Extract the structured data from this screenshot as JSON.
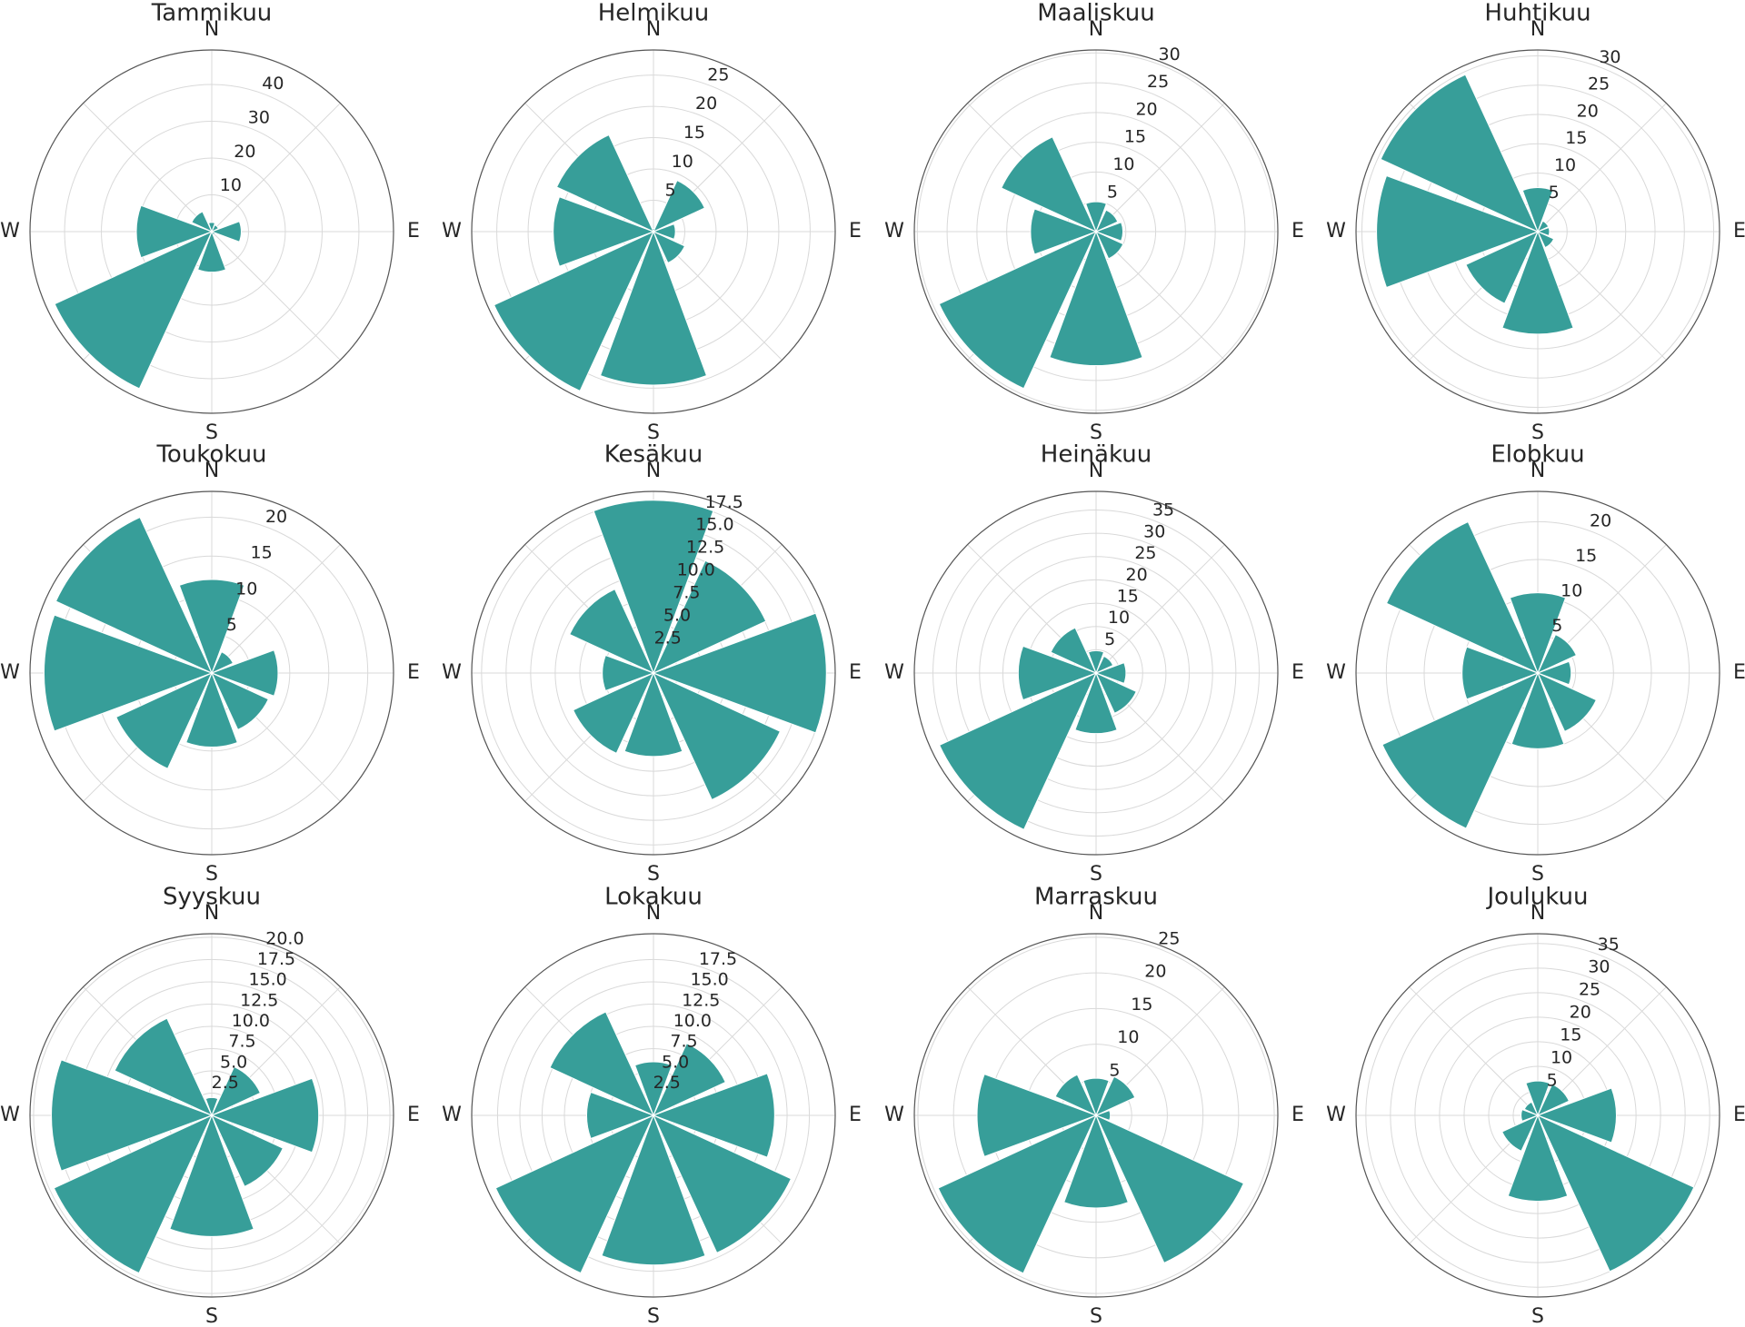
{
  "chart_data": [
    {
      "type": "polar_bar",
      "title": "Tammikuu",
      "categories": [
        "N",
        null,
        "E",
        null,
        "S",
        null,
        "W",
        null
      ],
      "color": "#379e99",
      "values": [
        2.5,
        2,
        8,
        1,
        11,
        47,
        20.5,
        6
      ],
      "ylim": [
        0,
        49.4
      ],
      "yticks": [
        10,
        20,
        30,
        40
      ],
      "grid": true
    },
    {
      "type": "polar_bar",
      "title": "Helmikuu",
      "categories": [
        "N",
        null,
        "E",
        null,
        "S",
        null,
        "W",
        null
      ],
      "color": "#379e99",
      "values": [
        0.5,
        9,
        3.5,
        5.5,
        24.5,
        28,
        16,
        17
      ],
      "ylim": [
        0,
        29
      ],
      "yticks": [
        5,
        10,
        15,
        20,
        25
      ],
      "grid": true
    },
    {
      "type": "polar_bar",
      "title": "Maaliskuu",
      "categories": [
        "N",
        null,
        "E",
        null,
        "S",
        null,
        "W",
        null
      ],
      "color": "#379e99",
      "values": [
        5,
        4,
        4.5,
        5,
        22.5,
        29,
        11,
        17.5
      ],
      "ylim": [
        0,
        30.5
      ],
      "yticks": [
        5,
        10,
        15,
        20,
        25,
        30
      ],
      "grid": true
    },
    {
      "type": "polar_bar",
      "title": "Huhtikuu",
      "categories": [
        "N",
        null,
        "E",
        null,
        "S",
        null,
        "W",
        null
      ],
      "color": "#379e99",
      "values": [
        7.5,
        2,
        2,
        3,
        17.5,
        13.5,
        27.5,
        29.5
      ],
      "ylim": [
        0,
        31
      ],
      "yticks": [
        5,
        10,
        15,
        20,
        25,
        30
      ],
      "grid": true
    },
    {
      "type": "polar_bar",
      "title": "Toukokuu",
      "categories": [
        "N",
        null,
        "E",
        null,
        "S",
        null,
        "W",
        null
      ],
      "color": "#379e99",
      "values": [
        12,
        3,
        8.5,
        8,
        9.5,
        13.5,
        21.5,
        22
      ],
      "ylim": [
        0,
        23.3
      ],
      "yticks": [
        5,
        10,
        15,
        20
      ],
      "grid": true
    },
    {
      "type": "polar_bar",
      "title": "Kesäkuu",
      "categories": [
        "N",
        null,
        "E",
        null,
        "S",
        null,
        "W",
        null
      ],
      "color": "#379e99",
      "values": [
        17.6,
        12.6,
        17.6,
        14.2,
        8.5,
        9,
        5.2,
        9.4
      ],
      "ylim": [
        0,
        18.5
      ],
      "yticks": [
        2.5,
        {
          "value": 5,
          "label": "5.0"
        },
        7.5,
        {
          "value": 10,
          "label": "10.0"
        },
        12.5,
        {
          "value": 15,
          "label": "15.0"
        },
        17.5
      ],
      "grid": true
    },
    {
      "type": "polar_bar",
      "title": "Heinäkuu",
      "categories": [
        "N",
        null,
        "E",
        null,
        "S",
        null,
        "W",
        null
      ],
      "color": "#379e99",
      "values": [
        4.8,
        4,
        6.4,
        9.5,
        13,
        37,
        16.7,
        10.7
      ],
      "ylim": [
        0,
        39
      ],
      "yticks": [
        5,
        10,
        15,
        20,
        25,
        30,
        35
      ],
      "grid": true
    },
    {
      "type": "polar_bar",
      "title": "Elobkuu",
      "categories": [
        "N",
        null,
        "E",
        null,
        "S",
        null,
        "W",
        null
      ],
      "color": "#379e99",
      "values": [
        10.6,
        5.6,
        4.4,
        8.5,
        10,
        22.6,
        10,
        22
      ],
      "ylim": [
        0,
        24
      ],
      "yticks": [
        5,
        10,
        15,
        20
      ],
      "grid": true
    },
    {
      "type": "polar_bar",
      "title": "Syyskuu",
      "categories": [
        "N",
        null,
        "E",
        null,
        "S",
        null,
        "W",
        null
      ],
      "color": "#379e99",
      "values": [
        2,
        6,
        12,
        8.8,
        13.6,
        19.5,
        18,
        12
      ],
      "ylim": [
        0,
        20.4
      ],
      "yticks": [
        2.5,
        {
          "value": 5,
          "label": "5.0"
        },
        7.5,
        {
          "value": 10,
          "label": "10.0"
        },
        12.5,
        {
          "value": 15,
          "label": "15.0"
        },
        17.5,
        {
          "value": 20,
          "label": "20.0"
        }
      ],
      "grid": true
    },
    {
      "type": "polar_bar",
      "title": "Lokakuu",
      "categories": [
        "N",
        null,
        "E",
        null,
        "S",
        null,
        "W",
        null
      ],
      "color": "#379e99",
      "values": [
        6,
        8.9,
        13.6,
        17,
        16.8,
        19.5,
        7.5,
        12.8
      ],
      "ylim": [
        0,
        20.4
      ],
      "yticks": [
        2.5,
        {
          "value": 5,
          "label": "5.0"
        },
        7.5,
        {
          "value": 10,
          "label": "10.0"
        },
        12.5,
        {
          "value": 15,
          "label": "15.0"
        },
        17.5
      ],
      "grid": true
    },
    {
      "type": "polar_bar",
      "title": "Marraskuu",
      "categories": [
        "N",
        null,
        "E",
        null,
        "S",
        null,
        "W",
        null
      ],
      "color": "#379e99",
      "values": [
        5.2,
        6,
        2,
        22.8,
        13,
        24.4,
        16.7,
        6.3
      ],
      "ylim": [
        0,
        25.5
      ],
      "yticks": [
        5,
        10,
        15,
        20,
        25
      ],
      "grid": true
    },
    {
      "type": "polar_bar",
      "title": "Joulukuu",
      "categories": [
        "N",
        null,
        "E",
        null,
        "S",
        null,
        "W",
        null
      ],
      "color": "#379e99",
      "values": [
        7,
        7,
        16,
        35,
        17.5,
        8,
        3.4,
        3
      ],
      "ylim": [
        0,
        37
      ],
      "yticks": [
        5,
        10,
        15,
        20,
        25,
        30,
        35
      ],
      "grid": true
    }
  ]
}
